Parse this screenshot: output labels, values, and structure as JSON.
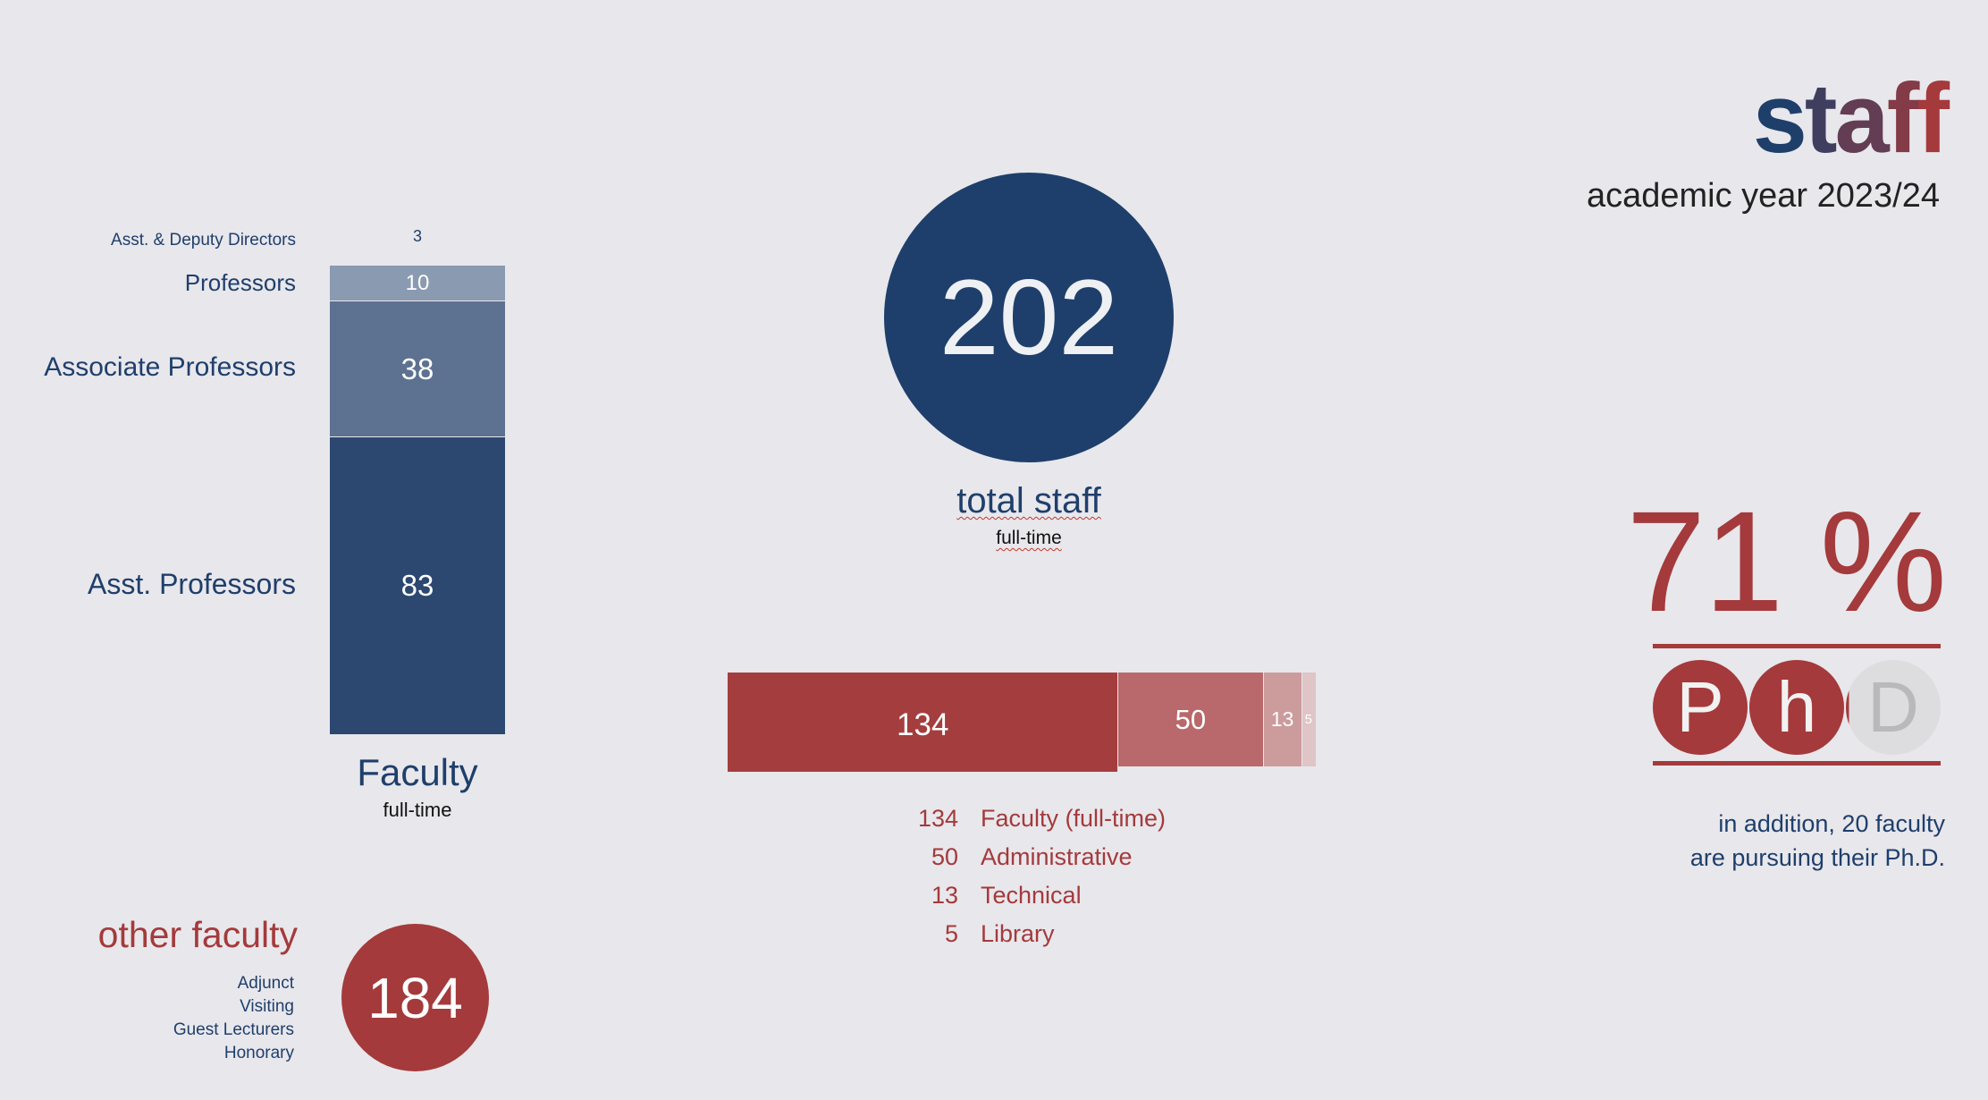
{
  "header": {
    "title": "staff",
    "subtitle": "academic year 2023/24"
  },
  "faculty": {
    "title": "Faculty",
    "subtitle": "full-time",
    "directors_label": "Asst. & Deputy Directors",
    "directors_value": "3"
  },
  "total": {
    "value": "202",
    "label": "total staff",
    "sublabel": "full-time"
  },
  "other_faculty": {
    "title": "other faculty",
    "value": "184",
    "types": [
      "Adjunct",
      "Visiting",
      "Guest Lecturers",
      "Honorary"
    ]
  },
  "phd": {
    "percent_text": "71 %",
    "percent": 71,
    "letters": [
      "P",
      "h",
      "D"
    ],
    "note_line1": "in addition, 20 faculty",
    "note_line2": "are pursuing their Ph.D."
  },
  "colors": {
    "navy": "#1e3f6b",
    "red": "#a43a3b",
    "background": "#e8e7ec"
  },
  "chart_data": [
    {
      "type": "bar",
      "stacked": true,
      "orientation": "vertical",
      "title": "Faculty",
      "categories": [
        "Asst. Professors",
        "Associate Professors",
        "Professors",
        "Asst. & Deputy Directors"
      ],
      "values": [
        83,
        38,
        10,
        3
      ],
      "colors": [
        "#2c4770",
        "#5d7190",
        "#8a9ab1",
        "#c7cdd8"
      ]
    },
    {
      "type": "bar",
      "stacked": true,
      "orientation": "horizontal",
      "categories": [
        "Faculty (full-time)",
        "Administrative",
        "Technical",
        "Library"
      ],
      "values": [
        134,
        50,
        13,
        5
      ],
      "colors": [
        "#a43d3e",
        "#b9696b",
        "#cc9b9c",
        "#dfc5c6"
      ]
    }
  ]
}
